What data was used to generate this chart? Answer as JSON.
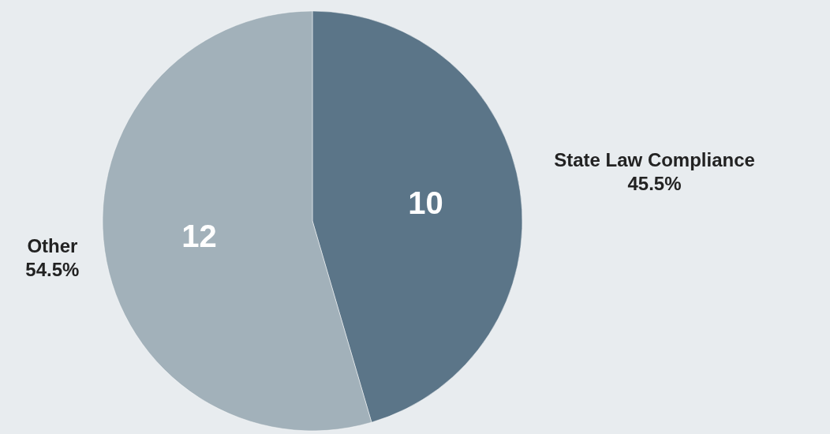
{
  "chart_data": {
    "type": "pie",
    "categories": [
      "State Law Compliance",
      "Other"
    ],
    "values": [
      10,
      12
    ],
    "colors": [
      "#5b7588",
      "#a2b1ba"
    ],
    "data_labels": true,
    "annotations": [
      "45.5%",
      "54.5%"
    ]
  }
}
